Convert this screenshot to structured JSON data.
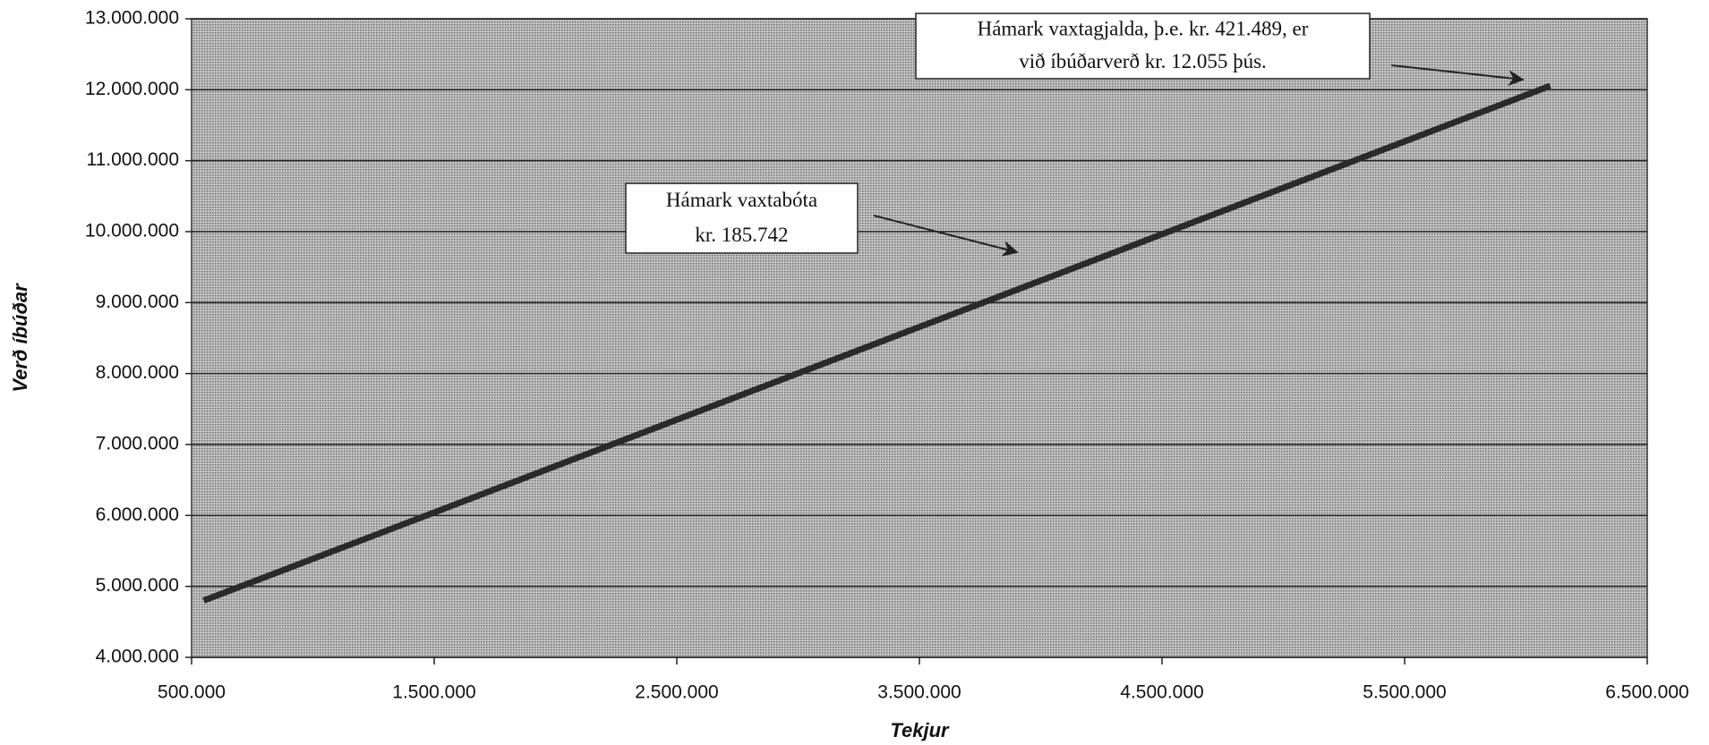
{
  "chart_data": {
    "type": "line",
    "xlabel": "Tekjur",
    "ylabel": "Verð íbúðar",
    "x": [
      550000,
      6100000
    ],
    "series": [
      {
        "color": "#2a2a2a",
        "values": [
          4800000,
          12055000
        ]
      }
    ],
    "xlim": [
      500000,
      6500000
    ],
    "xticks": [
      {
        "value": 500000,
        "label": "500.000"
      },
      {
        "value": 1500000,
        "label": "1.500.000"
      },
      {
        "value": 2500000,
        "label": "2.500.000"
      },
      {
        "value": 3500000,
        "label": "3.500.000"
      },
      {
        "value": 4500000,
        "label": "4.500.000"
      },
      {
        "value": 5500000,
        "label": "5.500.000"
      },
      {
        "value": 6500000,
        "label": "6.500.000"
      }
    ],
    "ylim": [
      4000000,
      13000000
    ],
    "yticks": [
      {
        "value": 4000000,
        "label": "4.000.000"
      },
      {
        "value": 5000000,
        "label": "5.000.000"
      },
      {
        "value": 6000000,
        "label": "6.000.000"
      },
      {
        "value": 7000000,
        "label": "7.000.000"
      },
      {
        "value": 8000000,
        "label": "8.000.000"
      },
      {
        "value": 9000000,
        "label": "9.000.000"
      },
      {
        "value": 10000000,
        "label": "10.000.000"
      },
      {
        "value": 11000000,
        "label": "11.000.000"
      },
      {
        "value": 12000000,
        "label": "12.000.000"
      },
      {
        "value": 13000000,
        "label": "13.000.000"
      }
    ],
    "grid": true,
    "annotations": [
      {
        "lines": [
          "Hámark vaxtagjalda, þ.e. kr. 421.489, er",
          "við íbúðarverð kr. 12.055 þús."
        ]
      },
      {
        "lines": [
          "Hámark vaxtabóta",
          "kr. 185.742"
        ]
      }
    ]
  }
}
